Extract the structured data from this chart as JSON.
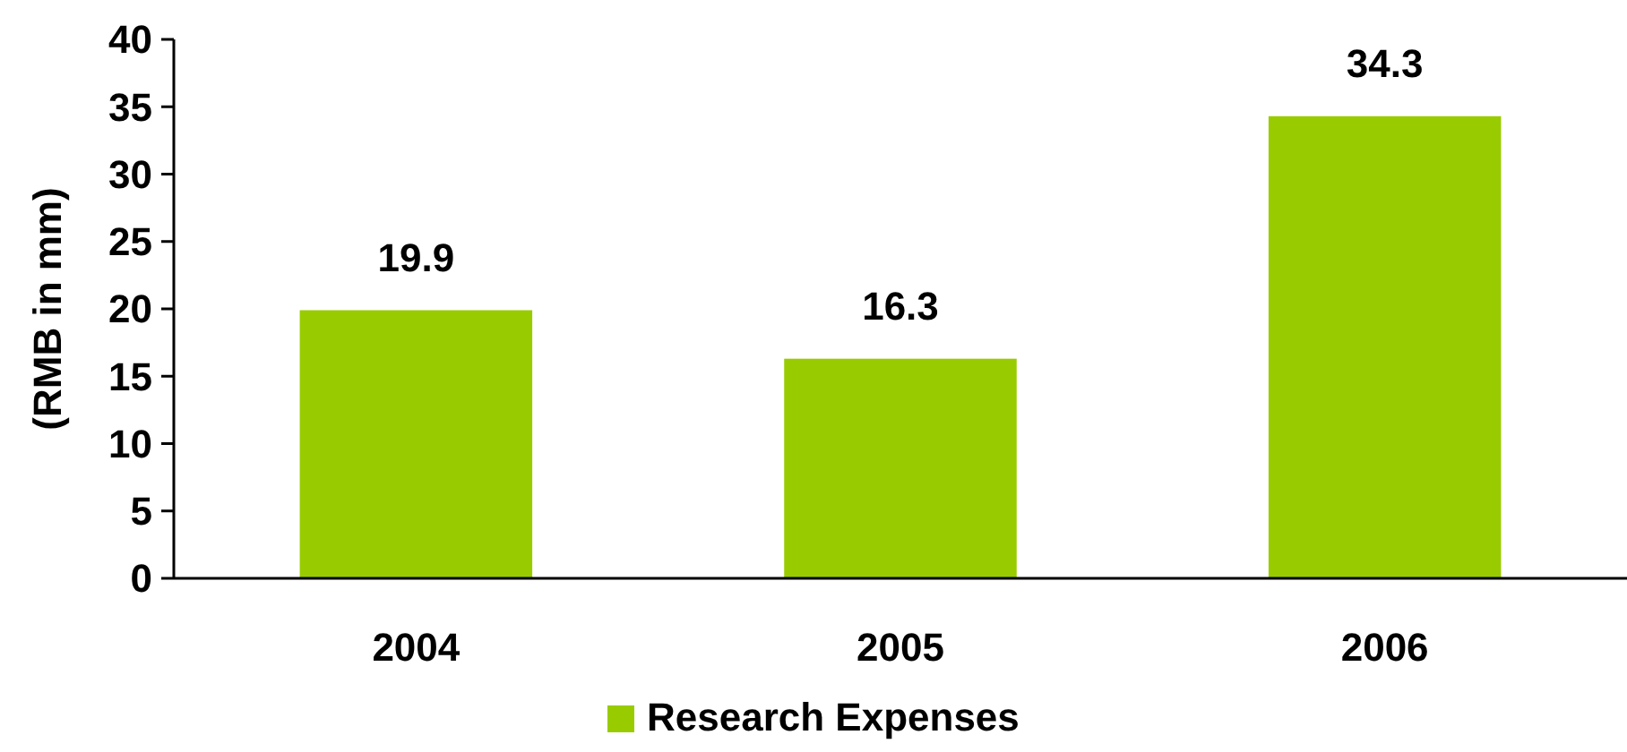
{
  "chart_data": {
    "type": "bar",
    "ylabel": "(RMB in mm)",
    "categories": [
      "2004",
      "2005",
      "2006"
    ],
    "series": [
      {
        "name": "Research Expenses",
        "color": "#99cc00",
        "values": [
          19.9,
          16.3,
          34.3
        ]
      }
    ],
    "ylim": [
      0,
      40
    ],
    "yticks": [
      0,
      5,
      10,
      15,
      20,
      25,
      30,
      35,
      40
    ],
    "data_labels": true,
    "legend": "bottom",
    "grid": false
  }
}
